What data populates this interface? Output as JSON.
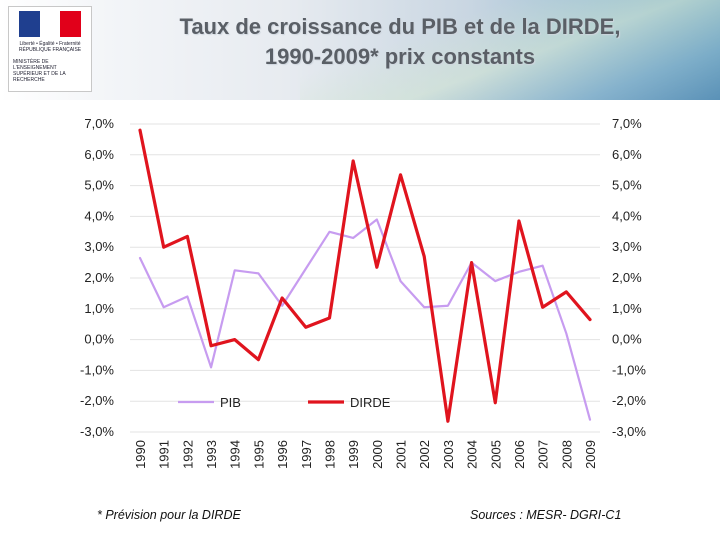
{
  "header": {
    "title_line1": "Taux de croissance du PIB et de la DIRDE,",
    "title_line2": "1990-2009* prix constants"
  },
  "logo": {
    "text_top": "Liberté • Égalité • Fraternité\nRÉPUBLIQUE FRANÇAISE",
    "text_ministry": "MINISTÈRE DE L'ENSEIGNEMENT SUPÉRIEUR ET DE LA RECHERCHE",
    "colors": [
      "#1f3f8f",
      "#ffffff",
      "#e1001a"
    ]
  },
  "chart_data": {
    "type": "line",
    "title": "",
    "xlabel": "",
    "ylabel": "",
    "categories": [
      "1990",
      "1991",
      "1992",
      "1993",
      "1994",
      "1995",
      "1996",
      "1997",
      "1998",
      "1999",
      "2000",
      "2001",
      "2002",
      "2003",
      "2004",
      "2005",
      "2006",
      "2007",
      "2008",
      "2009"
    ],
    "ylim": [
      -3.0,
      7.0
    ],
    "yticks": [
      "-3,0%",
      "-2,0%",
      "-1,0%",
      "0,0%",
      "1,0%",
      "2,0%",
      "3,0%",
      "4,0%",
      "5,0%",
      "6,0%",
      "7,0%"
    ],
    "y_axis_left_and_right": true,
    "grid": true,
    "legend_position": "bottom-center",
    "series": [
      {
        "name": "PIB",
        "color": "#c79cf0",
        "values": [
          2.65,
          1.05,
          1.4,
          -0.9,
          2.25,
          2.15,
          1.1,
          2.3,
          3.5,
          3.3,
          3.9,
          1.9,
          1.05,
          1.1,
          2.5,
          1.9,
          2.2,
          2.4,
          0.2,
          -2.6
        ]
      },
      {
        "name": "DIRDE",
        "color": "#e0141e",
        "values": [
          6.8,
          3.0,
          3.35,
          -0.2,
          0.0,
          -0.65,
          1.35,
          0.4,
          0.7,
          5.8,
          2.35,
          5.35,
          2.7,
          -2.65,
          2.5,
          -2.05,
          3.85,
          1.05,
          1.55,
          0.65
        ]
      }
    ]
  },
  "footer": {
    "note": "* Prévision pour la DIRDE",
    "source": "Sources : MESR- DGRI-C1"
  }
}
